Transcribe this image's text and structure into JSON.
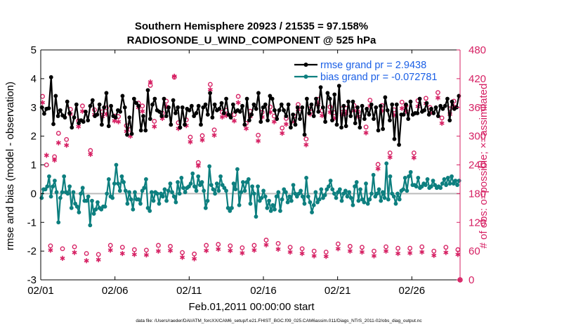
{
  "chart_data": {
    "type": "line",
    "title": "Southern Hemisphere 20923 / 21535 = 97.158%",
    "subtitle": "RADIOSONDE_U_WIND_COMPONENT @ 525 hPa",
    "xlabel": "Feb.01,2011 00:00:00 start",
    "ylabel": "rmse and bias (model - observation)",
    "y2label": "# of obs: o=possible; ×=assimilated",
    "footnote": "data file: /Users/raeder/DAI/ATM_forcXX/CAM6_setup/f.e21.FHIST_BGC.f09_025.CAM6assim.011/Diags_NTrS_2011-02/obs_diag_output.nc",
    "xlim": [
      0,
      28.25
    ],
    "ylim": [
      -3,
      5
    ],
    "y2lim": [
      0,
      480
    ],
    "x_ticks": [
      0,
      5,
      10,
      15,
      20,
      25
    ],
    "x_tick_labels": [
      "02/01",
      "02/06",
      "02/11",
      "02/16",
      "02/21",
      "02/26"
    ],
    "y_ticks": [
      -3,
      -2,
      -1,
      0,
      1,
      2,
      3,
      4,
      5
    ],
    "y_tick_labels": [
      "-3",
      "-2",
      "-1",
      "0",
      "1",
      "2",
      "3",
      "4",
      "5"
    ],
    "y2_ticks": [
      0,
      60,
      120,
      180,
      240,
      300,
      360,
      420,
      480
    ],
    "y2_tick_labels": [
      "0",
      "60",
      "120",
      "180",
      "240",
      "300",
      "360",
      "420",
      "480"
    ],
    "colors": {
      "rmse": "#000000",
      "bias": "#0d7f7f",
      "obs": "#d62063",
      "zero_line": "#bbbbbb",
      "legend_text": "#1a5fe6"
    },
    "legend": [
      "rmse grand pr = 2.9438",
      "bias grand pr = -0.072781"
    ],
    "series": [
      {
        "name": "rmse",
        "values": [
          3.0,
          2.78,
          2.95,
          2.97,
          4.05,
          2.42,
          3.4,
          2.7,
          2.9,
          2.72,
          2.65,
          3.2,
          2.8,
          2.3,
          2.65,
          3.1,
          2.45,
          2.55,
          2.5,
          2.85,
          2.55,
          3.05,
          3.25,
          2.7,
          2.75,
          3.1,
          2.4,
          3.0,
          3.5,
          2.35,
          3.05,
          2.7,
          2.65,
          2.9,
          2.85,
          3.4,
          3.0,
          2.05,
          2.65,
          2.08,
          3.3,
          3.15,
          3.05,
          2.2,
          2.7,
          2.2,
          3.6,
          2.6,
          3.1,
          3.3,
          2.9,
          2.85,
          2.7,
          3.3,
          2.7,
          3.0,
          2.4,
          3.25,
          2.8,
          3.0,
          2.3,
          3.0,
          2.4,
          2.95,
          2.9,
          3.05,
          2.7,
          2.8,
          3.05,
          2.4,
          3.0,
          3.1,
          2.75,
          3.5,
          2.65,
          3.1,
          2.9,
          2.95,
          3.15,
          2.8,
          3.3,
          2.75,
          2.65,
          3.1,
          2.85,
          2.9,
          2.85,
          3.05,
          2.4,
          3.3,
          2.55,
          2.75,
          3.1,
          2.95,
          3.5,
          2.5,
          3.0,
          3.1,
          2.55,
          3.4,
          3.3,
          2.9,
          2.6,
          2.9,
          3.1,
          2.9,
          2.7,
          3.1,
          2.3,
          2.75,
          2.4,
          3.0,
          2.6,
          3.0,
          2.05,
          3.3,
          2.8,
          3.1,
          2.7,
          3.3,
          2.85,
          3.7,
          3.0,
          2.5,
          3.5,
          3.3,
          2.55,
          3.45,
          2.4,
          3.75,
          2.3,
          3.05,
          2.35,
          3.2,
          2.7,
          3.2,
          2.45,
          3.0,
          2.3,
          3.05,
          2.6,
          2.95,
          2.75,
          3.1,
          2.6,
          3.0,
          2.2,
          3.05,
          2.25,
          3.35,
          2.9,
          2.55,
          3.1,
          1.9,
          3.1,
          1.7,
          2.75,
          2.75,
          3.1,
          2.6,
          3.2,
          2.75,
          2.8,
          2.8,
          3.3,
          2.85,
          2.9,
          3.15,
          2.75,
          2.95,
          2.8,
          3.0,
          2.7,
          3.05,
          2.95,
          3.05,
          3.3,
          2.55,
          3.2,
          2.95,
          3.0,
          3.4
        ]
      },
      {
        "name": "bias",
        "values": [
          -0.15,
          0.15,
          0.15,
          0.25,
          0.6,
          -0.1,
          0.25,
          0.45,
          0.05,
          -1.0,
          -0.15,
          0.05,
          0.6,
          0.05,
          0.0,
          0.25,
          -0.5,
          0.05,
          -0.35,
          -0.45,
          -0.65,
          0.0,
          0.2,
          -0.25,
          -0.25,
          -0.1,
          -1.1,
          -0.25,
          -0.7,
          -0.55,
          -0.3,
          -0.5,
          -0.55,
          -0.45,
          -0.45,
          0.0,
          0.5,
          -0.1,
          -0.15,
          0.35,
          1.0,
          0.35,
          0.1,
          0.6,
          0.4,
          0.1,
          -0.35,
          0.05,
          -0.2,
          -0.55,
          0.05,
          -0.2,
          -0.2,
          -0.35,
          0.1,
          0.2,
          0.5,
          -0.5,
          -0.6,
          0.05,
          -0.25,
          0.05,
          0.0,
          -0.35,
          0.0,
          -0.1,
          0.15,
          -0.25,
          0.1,
          0.35,
          0.05,
          -0.1,
          -0.3,
          0.4,
          0.0,
          0.55,
          0.2,
          0.05,
          0.2,
          0.25,
          0.35,
          0.7,
          0.25,
          0.1,
          0.6,
          0.3,
          0.4,
          0.1,
          -0.5,
          -0.25,
          0.95,
          0.3,
          0.15,
          0.0,
          0.35,
          0.1,
          0.6,
          0.3,
          0.2,
          0.1,
          -0.5,
          -0.6,
          -0.5,
          0.35,
          0.15,
          0.85,
          -0.4,
          0.05,
          0.4,
          0.1,
          0.4,
          0.5,
          -0.35,
          0.25,
          0.0,
          -0.8,
          0.25,
          -0.25,
          -0.15,
          0.1,
          -0.1,
          -0.5,
          -0.25,
          -0.6,
          -0.4,
          -0.55,
          -0.1,
          0.05,
          -0.6,
          -0.2,
          0.15,
          0.05,
          -0.3,
          -0.1,
          -0.25,
          0.3,
          0.0,
          -0.1,
          0.0,
          0.1,
          -0.1,
          -0.35,
          0.55,
          -0.1,
          -0.3,
          -0.65,
          -0.4,
          0.05,
          -0.3,
          -0.2,
          0.15,
          -0.15,
          -0.05,
          0.15,
          0.25,
          0.45,
          0.15,
          0.0,
          -0.15,
          0.05,
          0.15,
          -0.25,
          0.0,
          0.1,
          -0.1,
          0.05,
          -0.15,
          -0.4,
          0.25,
          0.4,
          -0.25,
          0.15,
          -0.2,
          -0.3,
          0.35,
          -0.35,
          -0.2,
          0.0,
          0.65,
          -0.1,
          0.0,
          0.15,
          -0.25,
          0.05,
          -0.15,
          1.05,
          -0.2,
          0.6,
          0.0,
          -0.1,
          -0.35,
          0.0,
          -0.2,
          0.1,
          0.15,
          0.55,
          0.1,
          0.6,
          0.75,
          0.3,
          0.3,
          0.25,
          0.55,
          0.2,
          0.25,
          0.35,
          0.3,
          0.5,
          0.2,
          0.25,
          0.45,
          0.3,
          0.2,
          0.25,
          0.2,
          0.35,
          0.5,
          0.3,
          0.55,
          0.35,
          0.6,
          0.35,
          0.45,
          0.3,
          0.45
        ]
      },
      {
        "name": "obs_possible",
        "values": [
          383,
          240,
          71,
          257,
          306,
          65,
          293,
          356,
          69,
          332,
          363,
          55,
          270,
          355,
          53,
          351,
          359,
          72,
          342,
          341,
          68,
          322,
          314,
          63,
          369,
          363,
          62,
          406,
          331,
          72,
          348,
          373,
          70,
          423,
          328,
          57,
          334,
          298,
          54,
          245,
          301,
          72,
          408,
          313,
          74,
          350,
          354,
          71,
          345,
          383,
          67,
          327,
          352,
          72,
          302,
          350,
          83,
          361,
          342,
          76,
          317,
          337,
          68,
          342,
          366,
          65,
          294,
          357,
          60,
          377,
          353,
          58,
          361,
          349,
          75,
          357,
          358,
          70,
          364,
          351,
          68,
          319,
          375,
          60,
          241,
          364,
          69,
          265,
          355,
          66,
          371,
          364,
          66,
          265,
          374,
          69,
          379,
          360,
          60,
          391,
          338,
          68,
          357,
          373,
          63
        ]
      },
      {
        "name": "obs_assimilated",
        "values": [
          370,
          260,
          62,
          250,
          286,
          45,
          281,
          346,
          57,
          320,
          352,
          40,
          262,
          345,
          42,
          341,
          346,
          62,
          332,
          330,
          55,
          310,
          300,
          53,
          360,
          352,
          52,
          413,
          320,
          60,
          337,
          362,
          61,
          425,
          316,
          47,
          322,
          288,
          44,
          238,
          292,
          61,
          397,
          302,
          64,
          340,
          343,
          61,
          332,
          370,
          56,
          316,
          341,
          62,
          290,
          340,
          73,
          350,
          330,
          64,
          306,
          325,
          58,
          330,
          356,
          55,
          282,
          346,
          50,
          366,
          343,
          49,
          350,
          337,
          65,
          345,
          348,
          60,
          353,
          341,
          58,
          307,
          363,
          50,
          232,
          353,
          60,
          256,
          344,
          55,
          358,
          352,
          56,
          255,
          362,
          58,
          368,
          348,
          51,
          380,
          327,
          57,
          346,
          362,
          53
        ]
      }
    ]
  }
}
